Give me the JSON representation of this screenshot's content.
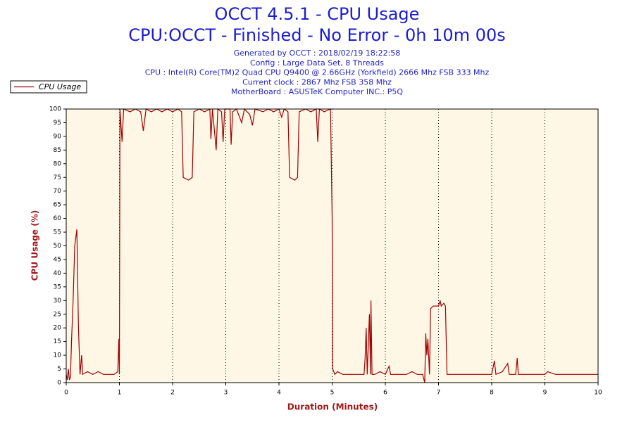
{
  "chart_data": {
    "type": "line",
    "title": "OCCT 4.5.1 - CPU Usage",
    "subtitle": "CPU:OCCT - Finished - No Error - 0h 10m 00s",
    "info": [
      "Generated by OCCT : 2018/02/19 18:22:58",
      "Config : Large Data Set, 8 Threads",
      "CPU : Intel(R) Core(TM)2 Quad CPU Q9400 @ 2.66GHz (Yorkfield) 2666 Mhz FSB 333 Mhz",
      "Current clock : 2867 Mhz FSB 358 Mhz",
      "MotherBoard : ASUSTeK Computer INC.: P5Q"
    ],
    "xlabel": "Duration (Minutes)",
    "ylabel": "CPU Usage (%)",
    "xlim": [
      0,
      10
    ],
    "xticks": [
      0,
      1,
      2,
      3,
      4,
      5,
      6,
      7,
      8,
      9,
      10
    ],
    "ylim": [
      0,
      100
    ],
    "yticks": [
      0,
      5,
      10,
      15,
      20,
      25,
      30,
      35,
      40,
      45,
      50,
      55,
      60,
      65,
      70,
      75,
      80,
      85,
      90,
      95,
      100
    ],
    "grid": true,
    "legend": "top-left",
    "x": [
      0,
      0.02,
      0.04,
      0.06,
      0.08,
      0.1,
      0.13,
      0.16,
      0.2,
      0.23,
      0.26,
      0.29,
      0.31,
      0.4,
      0.5,
      0.6,
      0.7,
      0.8,
      0.9,
      0.97,
      0.99,
      1.0,
      1.01,
      1.05,
      1.08,
      1.2,
      1.3,
      1.4,
      1.45,
      1.5,
      1.6,
      1.7,
      1.8,
      1.9,
      2.0,
      2.1,
      2.17,
      2.2,
      2.3,
      2.37,
      2.4,
      2.5,
      2.6,
      2.7,
      2.72,
      2.75,
      2.82,
      2.85,
      2.92,
      2.95,
      2.98,
      3.08,
      3.1,
      3.13,
      3.2,
      3.3,
      3.35,
      3.45,
      3.5,
      3.55,
      3.7,
      3.8,
      3.9,
      4.0,
      4.05,
      4.1,
      4.17,
      4.2,
      4.3,
      4.35,
      4.38,
      4.5,
      4.6,
      4.7,
      4.73,
      4.76,
      4.85,
      4.97,
      5.0,
      5.01,
      5.05,
      5.1,
      5.2,
      5.3,
      5.4,
      5.5,
      5.6,
      5.62,
      5.64,
      5.66,
      5.7,
      5.72,
      5.73,
      5.75,
      5.8,
      5.9,
      6.0,
      6.07,
      6.1,
      6.2,
      6.3,
      6.4,
      6.5,
      6.6,
      6.7,
      6.74,
      6.76,
      6.78,
      6.8,
      6.83,
      6.85,
      6.9,
      7.0,
      7.03,
      7.05,
      7.1,
      7.13,
      7.16,
      7.3,
      7.5,
      7.7,
      7.9,
      8.0,
      8.05,
      8.08,
      8.2,
      8.3,
      8.33,
      8.45,
      8.48,
      8.5,
      8.7,
      8.9,
      9.0,
      9.05,
      9.2,
      9.4,
      9.6,
      9.8,
      10.0
    ],
    "series": [
      {
        "name": "CPU Usage",
        "color": "#a00000",
        "values": [
          3,
          1,
          5,
          1,
          2,
          15,
          30,
          50,
          56,
          20,
          3,
          10,
          3,
          4,
          3,
          4,
          3,
          3,
          3,
          4,
          16,
          3,
          100,
          88,
          100,
          99,
          100,
          99,
          92,
          100,
          99,
          100,
          99,
          100,
          99,
          100,
          99,
          75,
          74,
          75,
          99,
          100,
          99,
          100,
          89,
          100,
          85,
          100,
          99,
          88,
          100,
          100,
          87,
          99,
          100,
          95,
          100,
          98,
          94,
          100,
          99,
          100,
          99,
          100,
          97,
          100,
          99,
          75,
          74,
          75,
          99,
          100,
          99,
          100,
          88,
          100,
          99,
          100,
          60,
          5,
          3,
          4,
          3,
          3,
          3,
          3,
          3,
          9,
          20,
          3,
          25,
          3,
          30,
          3,
          3,
          4,
          3,
          6,
          3,
          3,
          3,
          3,
          4,
          3,
          3,
          0,
          18,
          10,
          16,
          3,
          27,
          28,
          28,
          30,
          28,
          29,
          28,
          3,
          3,
          3,
          3,
          3,
          3,
          8,
          3,
          4,
          7,
          3,
          3,
          9,
          3,
          3,
          3,
          3,
          4,
          3,
          3,
          3,
          3,
          3
        ]
      }
    ]
  }
}
